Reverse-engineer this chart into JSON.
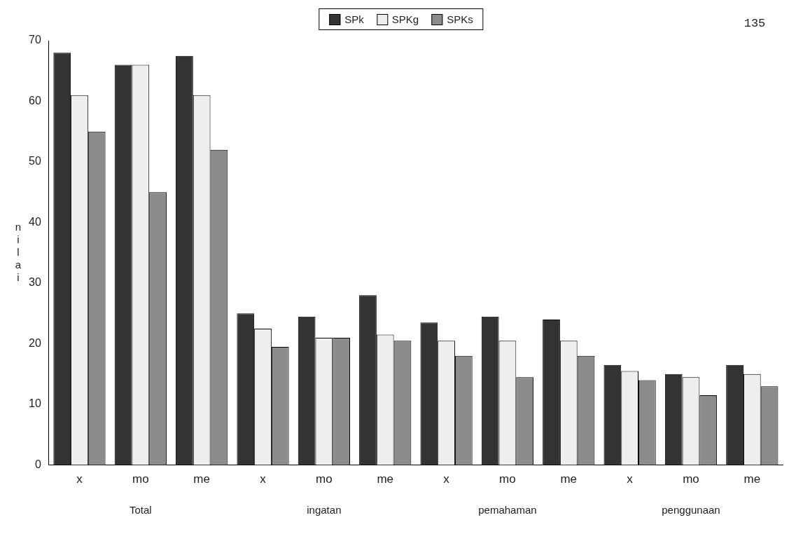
{
  "chart_data": {
    "type": "bar",
    "ylabel": "nilai",
    "categories": [
      "x",
      "mo",
      "me",
      "x",
      "mo",
      "me",
      "x",
      "mo",
      "me",
      "x",
      "mo",
      "me"
    ],
    "series": [
      {
        "name": "SPk",
        "color": "#333333",
        "values": [
          68,
          66,
          67.5,
          25,
          24.5,
          28,
          23.5,
          24.5,
          24,
          16.5,
          15,
          16.5
        ]
      },
      {
        "name": "SPKg",
        "color": "#eeeeee",
        "values": [
          61,
          66,
          61,
          22.5,
          21,
          21.5,
          20.5,
          20.5,
          20.5,
          15.5,
          14.5,
          15
        ]
      },
      {
        "name": "SPKs",
        "color": "#8c8c8c",
        "values": [
          55,
          45,
          52,
          19.5,
          21,
          20.5,
          18,
          14.5,
          18,
          14,
          11.5,
          13
        ]
      }
    ],
    "ylim": [
      0,
      70
    ],
    "yticks": [
      0,
      10,
      20,
      30,
      40,
      50,
      60,
      70
    ],
    "grid": false,
    "legend": "top",
    "annotations": [
      "Total",
      "ingatan",
      "pemahaman",
      "penggunaan",
      "135"
    ]
  }
}
